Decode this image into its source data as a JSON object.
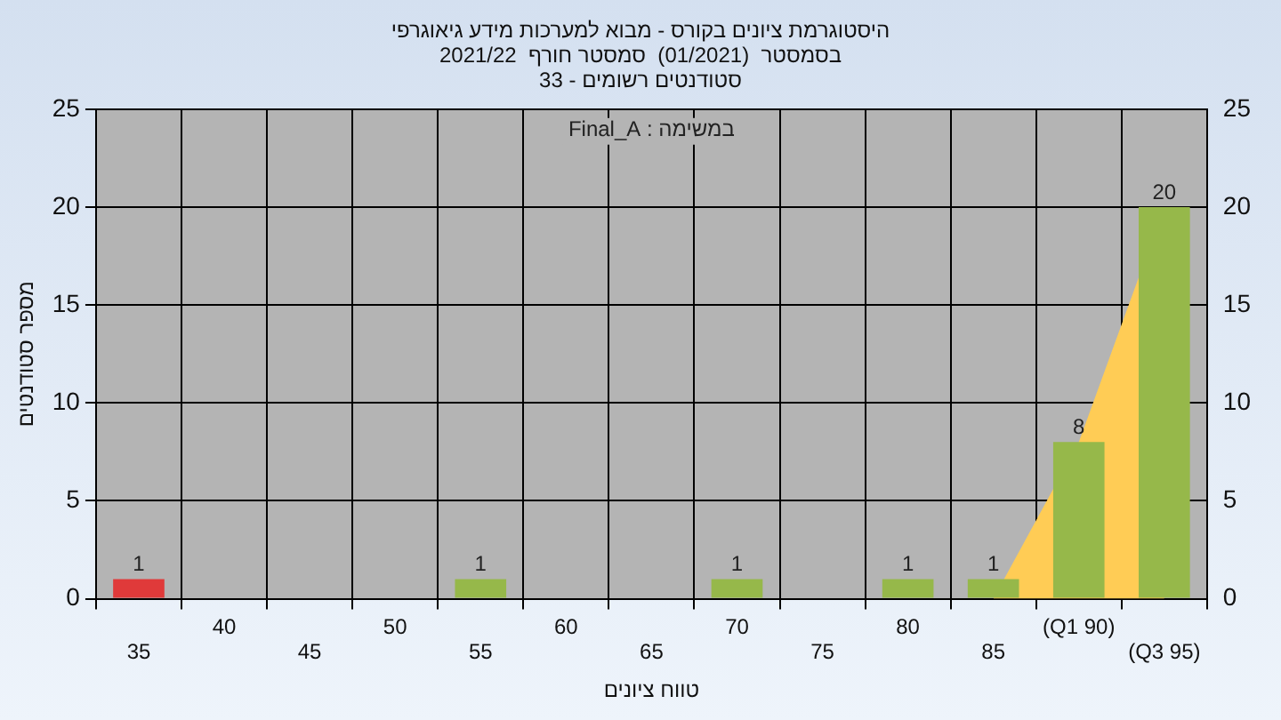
{
  "chart_data": {
    "type": "bar",
    "title": "היסטוגרמת ציונים בקורס - מבוא למערכות מידע גיאוגרפי",
    "subtitle": "בסמסטר  (01/2021)  סמסטר חורף  2021/22\nסטודנטים רשומים - 33",
    "xlabel": "טווח ציונים",
    "ylabel": "מספר סטודנטים",
    "annotations": [
      "במשימה : Final_A"
    ],
    "categories": [
      "35",
      "40",
      "45",
      "50",
      "55",
      "60",
      "65",
      "70",
      "75",
      "80",
      "85",
      "(Q1 90)",
      "(Q3 95)"
    ],
    "series": [
      {
        "colors": [
          "#e03a3a",
          "#96b84a",
          "#96b84a",
          "#96b84a",
          "#96b84a",
          "#96b84a",
          "#96b84a",
          "#96b84a",
          "#96b84a",
          "#96b84a",
          "#96b84a",
          "#96b84a",
          "#96b84a"
        ],
        "values": [
          1,
          0,
          0,
          0,
          1,
          0,
          0,
          1,
          0,
          1,
          1,
          8,
          20
        ],
        "value_labels": [
          "1",
          null,
          null,
          null,
          "1",
          null,
          null,
          "1",
          null,
          "1",
          "1",
          "8",
          "20"
        ]
      },
      {
        "type": "area",
        "color": "#ffcc55",
        "values": [
          null,
          null,
          null,
          null,
          null,
          null,
          null,
          null,
          null,
          null,
          0,
          8,
          20
        ]
      }
    ],
    "ylim": [
      0,
      25
    ],
    "yticks": [
      0,
      5,
      10,
      15,
      20,
      25
    ],
    "y2lim": [
      0,
      25
    ],
    "y2ticks": [
      0,
      5,
      10,
      15,
      20,
      25
    ],
    "grid": true,
    "legend": false
  }
}
